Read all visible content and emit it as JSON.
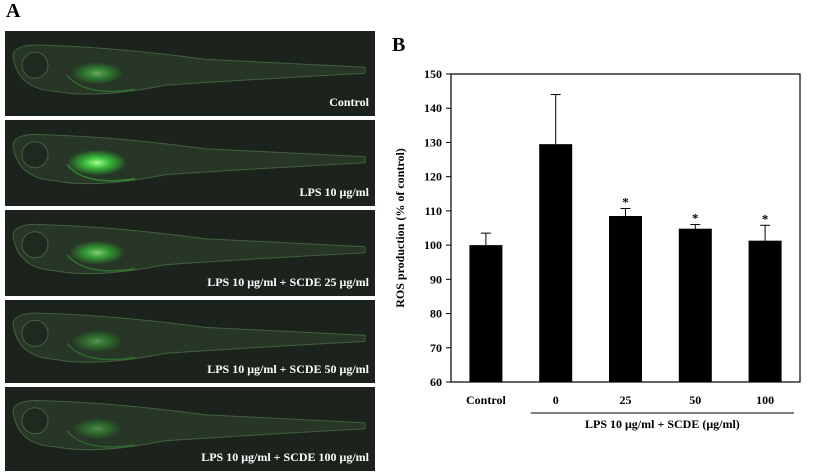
{
  "panel_a": {
    "letter": "A",
    "images": [
      {
        "caption": "Control",
        "intensity": 0.55
      },
      {
        "caption": "LPS 10 μg/ml",
        "intensity": 1.0
      },
      {
        "caption": "LPS 10 μg/ml + SCDE 25 μg/ml",
        "intensity": 0.75
      },
      {
        "caption": "LPS 10 μg/ml + SCDE 50 μg/ml",
        "intensity": 0.45
      },
      {
        "caption": "LPS 10 μg/ml + SCDE 100 μg/ml",
        "intensity": 0.4
      }
    ]
  },
  "panel_b": {
    "letter": "B",
    "fluorescence_color": "#39d43a",
    "bar_color": "#000000"
  },
  "chart_data": {
    "type": "bar",
    "categories": [
      "Control",
      "0",
      "25",
      "50",
      "100"
    ],
    "values": [
      100,
      129.5,
      108.5,
      104.8,
      101.3
    ],
    "errors": [
      3.5,
      14.5,
      2.2,
      1.2,
      4.5
    ],
    "significance": [
      "",
      "",
      "*",
      "*",
      "*"
    ],
    "ylabel": "ROS production (% of control)",
    "xlabel": "LPS 10 μg/ml + SCDE (μg/ml)",
    "ylim": [
      60,
      150
    ],
    "yticks": [
      60,
      70,
      80,
      90,
      100,
      110,
      120,
      130,
      140,
      150
    ],
    "grid": false
  }
}
